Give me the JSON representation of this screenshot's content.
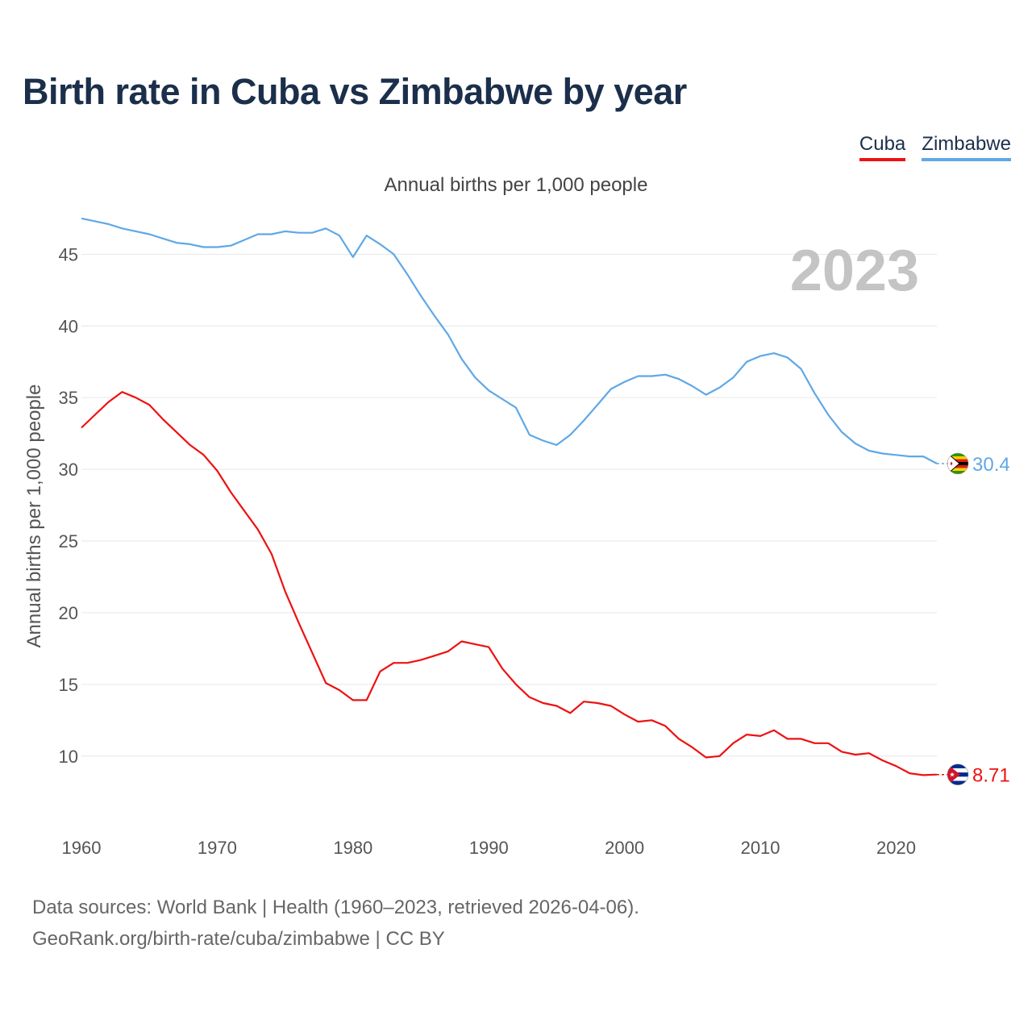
{
  "title": "Birth rate in Cuba vs Zimbabwe by year",
  "subtitle": "Annual births per 1,000 people",
  "legend": [
    {
      "label": "Cuba",
      "color": "#ee1111"
    },
    {
      "label": "Zimbabwe",
      "color": "#5fa8e6"
    }
  ],
  "year_watermark": "2023",
  "sources": {
    "line1": "Data sources: World Bank | Health (1960–2023, retrieved 2026-04-06).",
    "line2": "GeoRank.org/birth-rate/cuba/zimbabwe | CC BY"
  },
  "chart_data": {
    "type": "line",
    "title": "Birth rate in Cuba vs Zimbabwe by year",
    "xlabel": "",
    "ylabel": "Annual births per 1,000 people",
    "xlim": [
      1960,
      2023
    ],
    "ylim": [
      6.5,
      48
    ],
    "x_ticks": [
      1960,
      1970,
      1980,
      1990,
      2000,
      2010,
      2020
    ],
    "y_ticks": [
      10,
      15,
      20,
      25,
      30,
      35,
      40,
      45
    ],
    "grid": true,
    "x": [
      1960,
      1961,
      1962,
      1963,
      1964,
      1965,
      1966,
      1967,
      1968,
      1969,
      1970,
      1971,
      1972,
      1973,
      1974,
      1975,
      1976,
      1977,
      1978,
      1979,
      1980,
      1981,
      1982,
      1983,
      1984,
      1985,
      1986,
      1987,
      1988,
      1989,
      1990,
      1991,
      1992,
      1993,
      1994,
      1995,
      1996,
      1997,
      1998,
      1999,
      2000,
      2001,
      2002,
      2003,
      2004,
      2005,
      2006,
      2007,
      2008,
      2009,
      2010,
      2011,
      2012,
      2013,
      2014,
      2015,
      2016,
      2017,
      2018,
      2019,
      2020,
      2021,
      2022,
      2023
    ],
    "series": [
      {
        "name": "Cuba",
        "color": "#ee1111",
        "end_label": "8.71",
        "values": [
          32.9,
          33.8,
          34.7,
          35.4,
          35.0,
          34.5,
          33.5,
          32.6,
          31.7,
          31.0,
          29.9,
          28.4,
          27.1,
          25.8,
          24.1,
          21.5,
          19.3,
          17.2,
          15.1,
          14.6,
          13.9,
          13.9,
          15.9,
          16.5,
          16.5,
          16.7,
          17.0,
          17.3,
          18.0,
          17.8,
          17.6,
          16.1,
          15.0,
          14.1,
          13.7,
          13.5,
          13.0,
          13.8,
          13.7,
          13.5,
          12.9,
          12.4,
          12.5,
          12.1,
          11.2,
          10.6,
          9.9,
          10.0,
          10.9,
          11.5,
          11.4,
          11.8,
          11.2,
          11.2,
          10.9,
          10.9,
          10.3,
          10.1,
          10.2,
          9.7,
          9.3,
          8.8,
          8.67,
          8.71
        ]
      },
      {
        "name": "Zimbabwe",
        "color": "#5fa8e6",
        "end_label": "30.4",
        "values": [
          47.5,
          47.3,
          47.1,
          46.8,
          46.6,
          46.4,
          46.1,
          45.8,
          45.7,
          45.5,
          45.5,
          45.6,
          46.0,
          46.4,
          46.4,
          46.6,
          46.5,
          46.5,
          46.8,
          46.3,
          44.8,
          46.3,
          45.7,
          45.0,
          43.6,
          42.1,
          40.7,
          39.4,
          37.7,
          36.4,
          35.5,
          34.9,
          34.3,
          32.4,
          32.0,
          31.7,
          32.4,
          33.4,
          34.5,
          35.6,
          36.1,
          36.5,
          36.5,
          36.6,
          36.3,
          35.8,
          35.2,
          35.7,
          36.4,
          37.5,
          37.9,
          38.1,
          37.8,
          37.0,
          35.3,
          33.8,
          32.6,
          31.8,
          31.3,
          31.1,
          31.0,
          30.9,
          30.9,
          30.4
        ]
      }
    ]
  }
}
